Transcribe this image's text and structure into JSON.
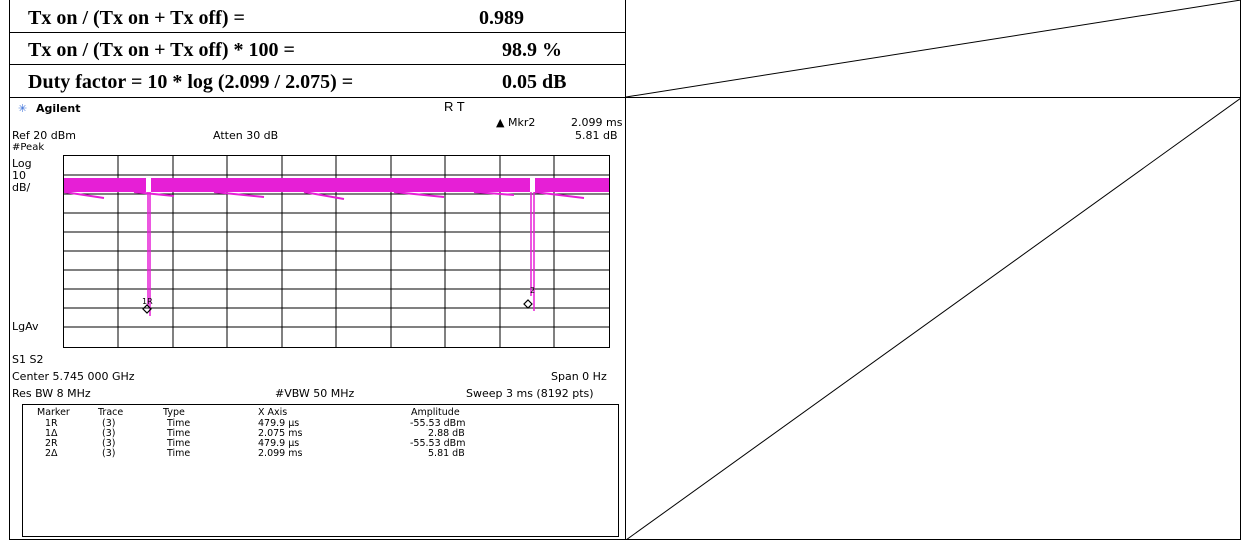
{
  "calculations": [
    {
      "label": "Tx on / (Tx on + Tx off) =",
      "value": "0.989"
    },
    {
      "label": "Tx on / (Tx on + Tx off) * 100 =",
      "value": "98.9  %"
    },
    {
      "label": "Duty factor = 10 * log (2.099 / 2.075) =",
      "value": "0.05  dB"
    }
  ],
  "analyzer": {
    "brand": "Agilent",
    "status": "R  T",
    "marker_label": "▲ Mkr2",
    "marker_time": "2.099 ms",
    "marker_db": "5.81 dB",
    "ref": "Ref 20 dBm",
    "atten": "Atten 30 dB",
    "peak": "#Peak",
    "log": "Log",
    "ten": "10",
    "dbdiv": "dB/",
    "lgav": "LgAv",
    "s1s2": "S1  S2",
    "center": "Center 5.745 000 GHz",
    "span": "Span 0 Hz",
    "res_bw": "Res BW 8 MHz",
    "vbw": "#VBW 50 MHz",
    "sweep": "Sweep 3 ms (8192 pts)",
    "marker1_label": "1R",
    "marker2_label": "2",
    "trace_color": "#e61fd6"
  },
  "marker_table": {
    "headers": [
      "Marker",
      "Trace",
      "Type",
      "X Axis",
      "Amplitude"
    ],
    "rows": [
      [
        "1R",
        "(3)",
        "Time",
        "479.9 µs",
        "-55.53 dBm"
      ],
      [
        "1Δ",
        "(3)",
        "Time",
        "2.075 ms",
        "2.88 dB"
      ],
      [
        "2R",
        "(3)",
        "Time",
        "479.9 µs",
        "-55.53 dBm"
      ],
      [
        "2Δ",
        "(3)",
        "Time",
        "2.099 ms",
        "5.81 dB"
      ]
    ]
  }
}
